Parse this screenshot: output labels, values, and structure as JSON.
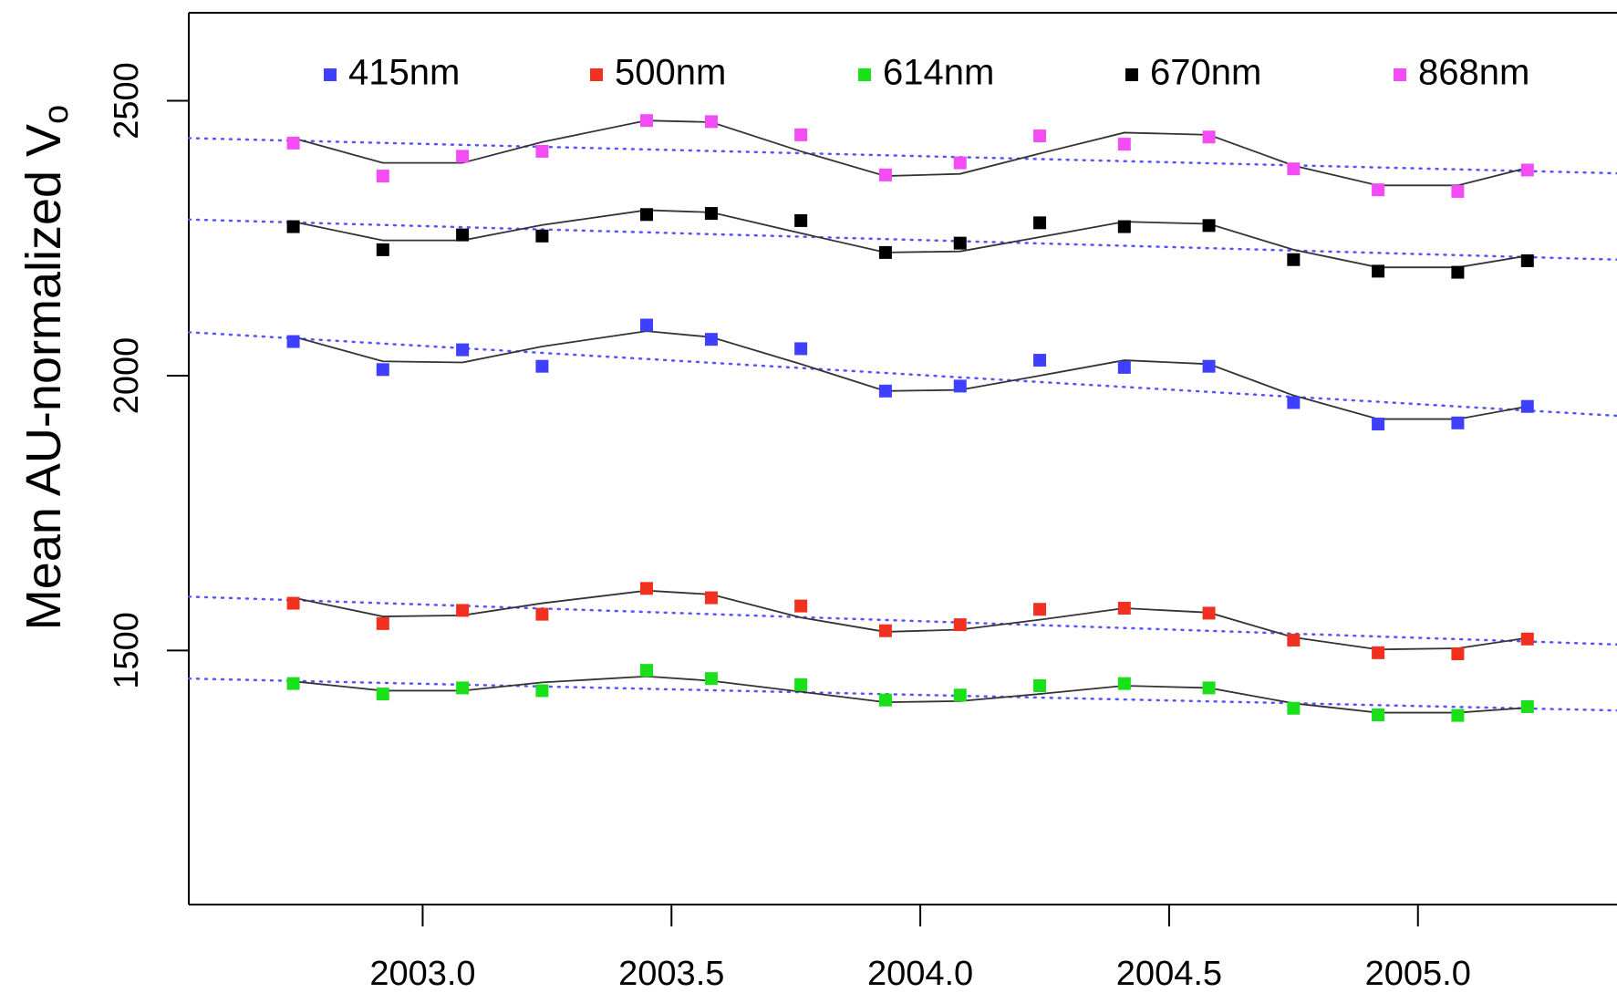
{
  "chart_data": {
    "type": "scatter",
    "y_label": "Mean AU-normalized V",
    "y_label_sub": "o",
    "x": [
      2002.74,
      2002.92,
      2003.08,
      2003.24,
      2003.45,
      2003.58,
      2003.76,
      2003.93,
      2004.08,
      2004.24,
      2004.41,
      2004.58,
      2004.75,
      2004.92,
      2005.08,
      2005.22
    ],
    "trend_x": [
      2002.53,
      2005.4
    ],
    "trend_color": "#5555ff",
    "smooth_color": "#333333",
    "xlim": [
      2002.53,
      2005.4
    ],
    "xticks": [
      {
        "value": 2003,
        "label": "2003.0"
      },
      {
        "value": 2003.5,
        "label": "2003.5"
      },
      {
        "value": 2004,
        "label": "2004.0"
      },
      {
        "value": 2004.5,
        "label": "2004.5"
      },
      {
        "value": 2005,
        "label": "2005.0"
      }
    ],
    "ylim": [
      1038,
      2660
    ],
    "yticks": [
      1500,
      2000,
      2500
    ],
    "series": [
      {
        "name": "415nm",
        "color": "#3f3fff",
        "values": [
          2062,
          2011,
          2047,
          2017,
          2092,
          2066,
          2049,
          1972,
          1981,
          2028,
          2015,
          2017,
          1951,
          1912,
          1914,
          1944
        ],
        "smooth": [
          2071,
          2026,
          2024,
          2053,
          2081,
          2070,
          2021,
          1972,
          1974,
          2000,
          2028,
          2021,
          1964,
          1921,
          1921,
          1944
        ],
        "trend": [
          2079,
          1927
        ]
      },
      {
        "name": "500nm",
        "color": "#f2301f",
        "values": [
          1586,
          1549,
          1573,
          1566,
          1613,
          1596,
          1581,
          1536,
          1547,
          1575,
          1577,
          1568,
          1519,
          1496,
          1494,
          1521
        ],
        "smooth": [
          1596,
          1562,
          1564,
          1586,
          1609,
          1602,
          1560,
          1534,
          1538,
          1556,
          1577,
          1569,
          1524,
          1502,
          1504,
          1523
        ],
        "trend": [
          1598,
          1511
        ]
      },
      {
        "name": "614nm",
        "color": "#19e019",
        "values": [
          1440,
          1421,
          1432,
          1427,
          1464,
          1449,
          1438,
          1410,
          1419,
          1436,
          1440,
          1432,
          1395,
          1383,
          1382,
          1398
        ],
        "smooth": [
          1444,
          1427,
          1427,
          1442,
          1453,
          1445,
          1425,
          1406,
          1408,
          1421,
          1436,
          1432,
          1404,
          1387,
          1387,
          1396
        ],
        "trend": [
          1449,
          1391
        ]
      },
      {
        "name": "670nm",
        "color": "#000000",
        "values": [
          2271,
          2229,
          2256,
          2254,
          2293,
          2295,
          2282,
          2224,
          2241,
          2278,
          2271,
          2273,
          2211,
          2190,
          2188,
          2209
        ],
        "smooth": [
          2280,
          2246,
          2246,
          2274,
          2301,
          2297,
          2259,
          2224,
          2226,
          2252,
          2280,
          2276,
          2229,
          2197,
          2197,
          2218
        ],
        "trend": [
          2284,
          2211
        ]
      },
      {
        "name": "868nm",
        "color": "#f44cf4",
        "values": [
          2423,
          2363,
          2399,
          2408,
          2464,
          2462,
          2438,
          2365,
          2387,
          2436,
          2421,
          2434,
          2376,
          2338,
          2335,
          2374
        ],
        "smooth": [
          2432,
          2387,
          2387,
          2425,
          2464,
          2461,
          2408,
          2363,
          2367,
          2404,
          2442,
          2438,
          2382,
          2346,
          2346,
          2378
        ],
        "trend": [
          2432,
          2368
        ]
      }
    ]
  }
}
